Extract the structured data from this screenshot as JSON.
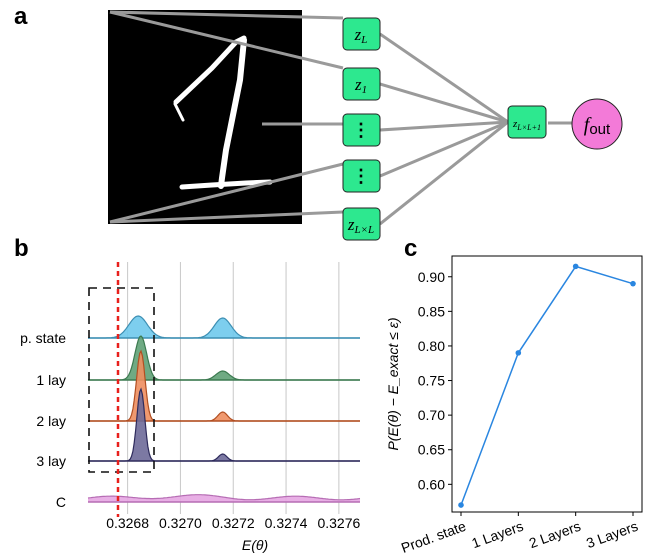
{
  "panel_labels": {
    "a": "a",
    "b": "b",
    "c": "c"
  },
  "panel_a": {
    "nodes": [
      {
        "main": "z",
        "sub": "L"
      },
      {
        "main": "z",
        "sub": "1"
      },
      {
        "main": "⋮",
        "sub": ""
      },
      {
        "main": "⋮",
        "sub": ""
      },
      {
        "main": "z",
        "sub": "L×L"
      }
    ],
    "hidden_node": {
      "main": "z",
      "sub": "L×L+1"
    },
    "output_node": {
      "main": "f",
      "sub": "out"
    },
    "colors": {
      "node": "#2de88f",
      "output": "#f37ad8",
      "edge": "#9a9a9a",
      "image_bg": "#000000"
    }
  },
  "panel_b": {
    "rows": [
      "p. state",
      "1 lay",
      "2 lay",
      "3 lay",
      "C"
    ],
    "x_ticks": [
      "0.3268",
      "0.3270",
      "0.3272",
      "0.3274",
      "0.3276"
    ],
    "xlabel": "E(θ)",
    "colors": [
      "#6fc9ec",
      "#5fa176",
      "#ee8e5f",
      "#6e6a99",
      "#e6a6e2"
    ],
    "line_colors": [
      "#3d8fb3",
      "#3c7a50",
      "#b24f22",
      "#2e2b5c",
      "#b66db4"
    ],
    "exact_line_color": "#e8201c"
  },
  "chart_data": {
    "type": "line",
    "categories": [
      "Prod. state",
      "1 Layers",
      "2 Layers",
      "3 Layers"
    ],
    "values": [
      0.57,
      0.79,
      0.915,
      0.89
    ],
    "ylabel": "P(E(θ) − E_exact ≤ ε)",
    "ylim": [
      0.56,
      0.93
    ],
    "y_ticks": [
      "0.60",
      "0.65",
      "0.70",
      "0.75",
      "0.80",
      "0.85",
      "0.90"
    ],
    "line_color": "#2a86e0"
  }
}
